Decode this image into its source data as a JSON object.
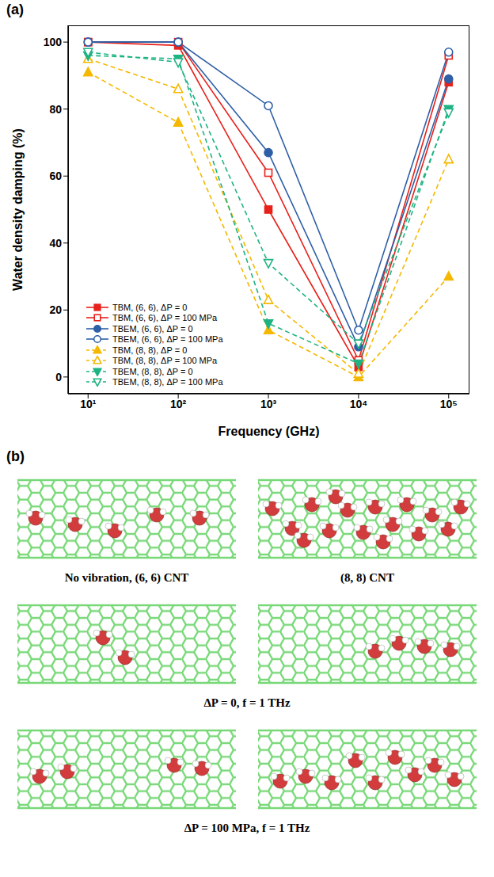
{
  "chart_data": {
    "type": "line",
    "panel_label": "(a)",
    "x_label": "Frequency (GHz)",
    "y_label": "Water density damping (%)",
    "log": "x",
    "grid": false,
    "legend": "lower left",
    "x": [
      10,
      100,
      1000,
      10000,
      100000
    ],
    "xlim": [
      6,
      170000
    ],
    "xticks": [
      {
        "value": 10,
        "label": "10¹"
      },
      {
        "value": 100,
        "label": "10²"
      },
      {
        "value": 1000,
        "label": "10³"
      },
      {
        "value": 10000,
        "label": "10⁴"
      },
      {
        "value": 100000,
        "label": "10⁵"
      }
    ],
    "ylim": [
      -5,
      105
    ],
    "yticks": [
      0,
      20,
      40,
      60,
      80,
      100
    ],
    "series": [
      {
        "name": "TBM, (6, 6), ΔP = 0",
        "color": "#e8211b",
        "marker": "square",
        "line_style": "solid",
        "values": [
          100,
          99,
          50,
          3,
          88
        ]
      },
      {
        "name": "TBM, (6, 6), ΔP = 100 MPa",
        "color": "#e8211b",
        "marker": "open-square",
        "line_style": "solid",
        "values": [
          100,
          100,
          61,
          5,
          96
        ]
      },
      {
        "name": "TBEM, (6, 6), ΔP = 0",
        "color": "#2f5fa7",
        "marker": "circle",
        "line_style": "solid",
        "values": [
          100,
          100,
          67,
          9,
          89
        ]
      },
      {
        "name": "TBEM, (6, 6), ΔP = 100 MPa",
        "color": "#2f5fa7",
        "marker": "open-circle",
        "line_style": "solid",
        "values": [
          100,
          100,
          81,
          14,
          97
        ]
      },
      {
        "name": "TBM, (8, 8), ΔP = 0",
        "color": "#f5b800",
        "marker": "triangle",
        "line_style": "dashed",
        "values": [
          91,
          76,
          14,
          0,
          30
        ]
      },
      {
        "name": "TBM, (8, 8), ΔP = 100 MPa",
        "color": "#f5b800",
        "marker": "open-triangle",
        "line_style": "dashed",
        "values": [
          95,
          86,
          23,
          1,
          65
        ]
      },
      {
        "name": "TBEM, (8, 8), ΔP = 0",
        "color": "#1fb383",
        "marker": "triangle-down",
        "line_style": "dashed",
        "values": [
          96,
          95,
          16,
          4,
          80
        ]
      },
      {
        "name": "TBEM, (8, 8), ΔP = 100 MPa",
        "color": "#1fb383",
        "marker": "open-triangle-down",
        "line_style": "dashed",
        "values": [
          97,
          94,
          34,
          10,
          79
        ]
      }
    ]
  },
  "panel_b": {
    "panel_label": "(b)",
    "rows": [
      {
        "captions": [
          "No vibration, (6, 6) CNT",
          "(8, 8) CNT"
        ]
      },
      {
        "captions": [
          "ΔP = 0, f = 1 THz"
        ]
      },
      {
        "captions": [
          "ΔP = 100 MPa, f = 1 THz"
        ]
      }
    ]
  }
}
